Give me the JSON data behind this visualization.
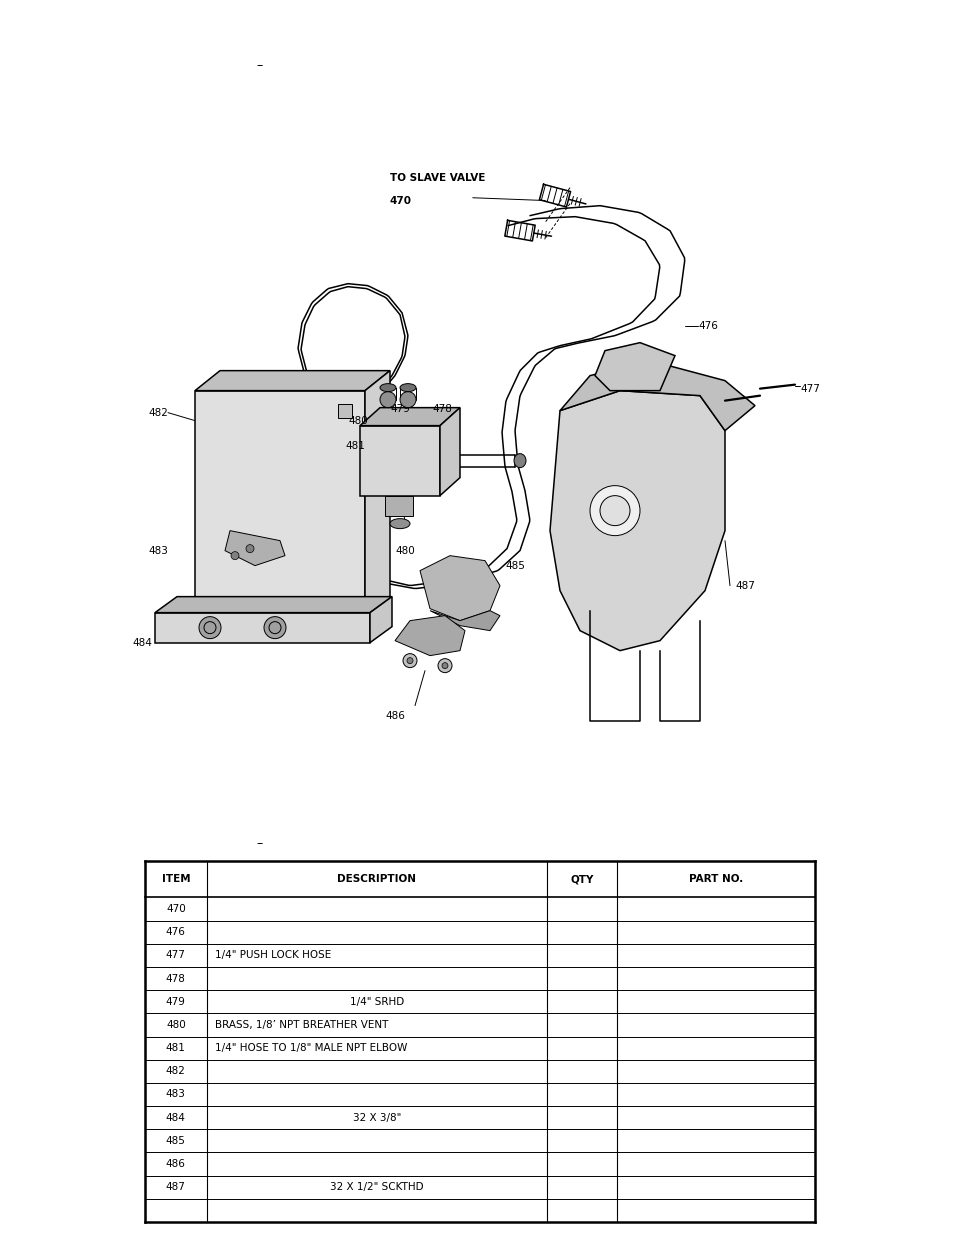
{
  "bg_color": "#ffffff",
  "drawing_dash": "–",
  "table_dash": "–",
  "col": "#000000",
  "gray_light": "#e8e8e8",
  "gray_med": "#c8c8c8",
  "gray_dark": "#a0a0a0",
  "table_rows": [
    [
      "470",
      "",
      "",
      ""
    ],
    [
      "476",
      "",
      "",
      ""
    ],
    [
      "477",
      "1/4\" PUSH LOCK HOSE",
      "left",
      ""
    ],
    [
      "478",
      "",
      "",
      ""
    ],
    [
      "479",
      "1/4\" SRHD",
      "center",
      ""
    ],
    [
      "480",
      "BRASS, 1/8’ NPT BREATHER VENT",
      "left",
      ""
    ],
    [
      "481",
      "1/4\" HOSE TO 1/8\" MALE NPT ELBOW",
      "left",
      ""
    ],
    [
      "482",
      "",
      "",
      ""
    ],
    [
      "483",
      "",
      "",
      ""
    ],
    [
      "484",
      "32 X 3/8\"",
      "center",
      ""
    ],
    [
      "485",
      "",
      "",
      ""
    ],
    [
      "486",
      "",
      "",
      ""
    ],
    [
      "487",
      "32 X 1/2\" SCKTHD",
      "center",
      ""
    ],
    [
      "",
      "",
      "",
      ""
    ],
    [
      "",
      "",
      "",
      ""
    ]
  ],
  "table_headers": [
    "ITEM",
    "DESCRIPTION",
    "QTY",
    "PART NO."
  ],
  "lw_thin": 0.7,
  "lw_med": 1.1,
  "lw_thick": 1.6
}
